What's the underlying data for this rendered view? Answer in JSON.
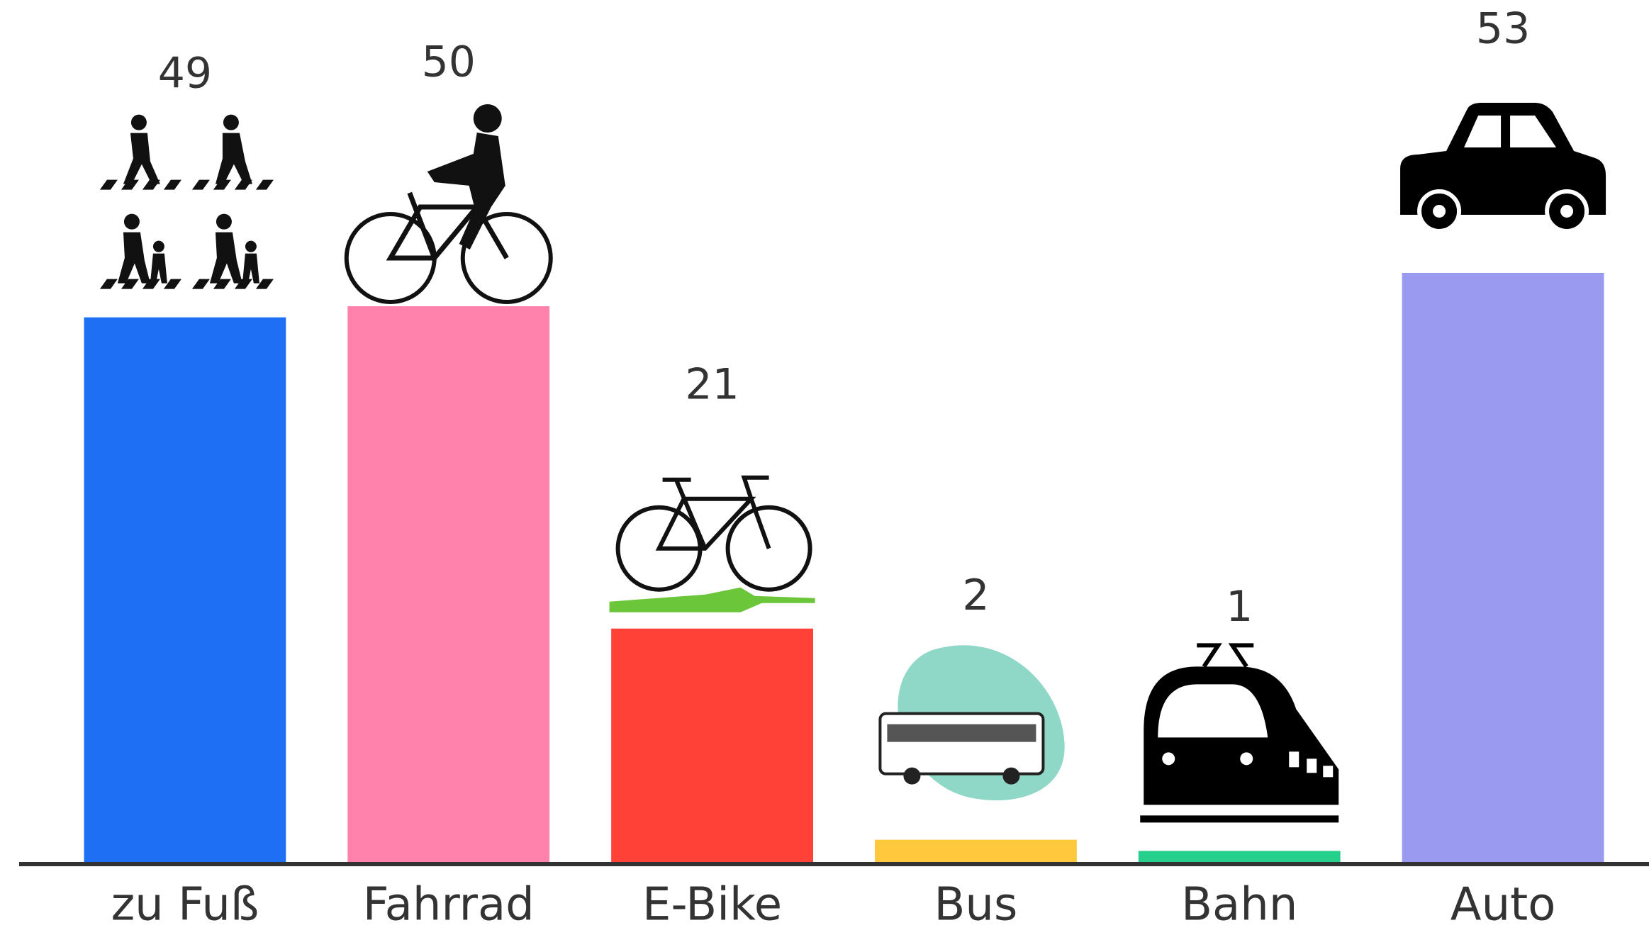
{
  "chart_data": {
    "type": "bar",
    "categories": [
      "zu Fuß",
      "Fahrrad",
      "E-Bike",
      "Bus",
      "Bahn",
      "Auto"
    ],
    "values": [
      49,
      50,
      21,
      2,
      1,
      53
    ],
    "colors": [
      "#1f6ff5",
      "#ff82ac",
      "#ff4138",
      "#ffc83d",
      "#26cf8c",
      "#9a9af0"
    ],
    "ylim": [
      0,
      75
    ]
  }
}
